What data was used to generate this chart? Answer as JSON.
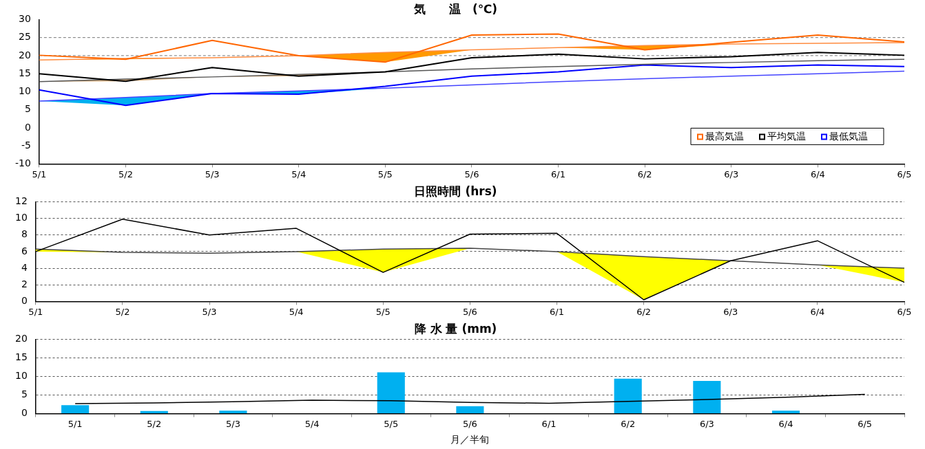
{
  "chart_data": [
    {
      "type": "line",
      "title": "気　　温　(℃)",
      "categories": [
        "5/1",
        "5/2",
        "5/3",
        "5/4",
        "5/5",
        "5/6",
        "6/1",
        "6/2",
        "6/3",
        "6/4",
        "6/5"
      ],
      "series": [
        {
          "name": "最高気温",
          "color": "#ff6600",
          "values": [
            20.1,
            19,
            24.2,
            20,
            18.2,
            25.7,
            26,
            21.6,
            23.7,
            25.7,
            23.8
          ]
        },
        {
          "color": "#ff8c40",
          "values": [
            18.8,
            19.2,
            19.4,
            20,
            20.9,
            21.6,
            22.2,
            22.8,
            23.2,
            23.4,
            23.6
          ],
          "lower": [
            18.8,
            19,
            19.4,
            20,
            18.2,
            21.6,
            22.2,
            21.6,
            23.2,
            23.4,
            23.6
          ],
          "upper": [
            18.8,
            19.2,
            19.4,
            20,
            20.9,
            21.6,
            22.2,
            22.8,
            23.2,
            23.4,
            23.6
          ]
        },
        {
          "name": "平均気温",
          "color": "#000000",
          "values": [
            15,
            12.9,
            16.7,
            14.3,
            15.5,
            19.4,
            20.4,
            19.1,
            19.7,
            20.9,
            20.1
          ]
        },
        {
          "color": "#555555",
          "values": [
            12.8,
            13.5,
            14.1,
            14.8,
            15.5,
            16.3,
            17,
            17.6,
            18.1,
            18.6,
            19
          ],
          "lower": [
            12.8,
            12.9,
            14.1,
            14.3,
            15.5,
            16.3,
            17,
            17.6,
            18.1,
            18.6,
            19
          ],
          "upper": [
            12.8,
            13.5,
            14.1,
            14.8,
            15.5,
            16.3,
            17,
            17.6,
            18.1,
            18.6,
            19
          ]
        },
        {
          "name": "最低気温",
          "color": "#0000ff",
          "values": [
            10.5,
            6.2,
            9.5,
            9.3,
            11.5,
            14.3,
            15.5,
            17.4,
            16.7,
            17.4,
            17
          ]
        },
        {
          "color": "#4444ff",
          "values": [
            7.4,
            8.4,
            9.5,
            10.2,
            11,
            11.9,
            12.8,
            13.6,
            14.3,
            15,
            15.7
          ],
          "lower": [
            7.4,
            6.2,
            9.5,
            9.3,
            11,
            11.9,
            12.8,
            13.6,
            14.3,
            15,
            15.7
          ],
          "upper": [
            7.4,
            8.4,
            9.5,
            10.2,
            11,
            11.9,
            12.8,
            13.6,
            14.3,
            15,
            15.7
          ]
        }
      ],
      "ylim": [
        -10,
        30
      ],
      "yticks": [
        -10,
        -5,
        0,
        5,
        10,
        15,
        20,
        25,
        30
      ],
      "ref_lines": [
        {
          "axis": "y",
          "value": 20,
          "line_style": "dashed"
        },
        {
          "axis": "y",
          "value": 25,
          "line_style": "dashed"
        }
      ],
      "legend": "bottom right"
    },
    {
      "type": "line",
      "title": "日照時間 (hrs)",
      "categories": [
        "5/1",
        "5/2",
        "5/3",
        "5/4",
        "5/5",
        "5/6",
        "6/1",
        "6/2",
        "6/3",
        "6/4",
        "6/5"
      ],
      "series": [
        {
          "color": "#000000",
          "values": [
            6,
            9.9,
            8,
            8.8,
            3.5,
            8.1,
            8.2,
            0.2,
            4.9,
            7.3,
            2.3
          ]
        },
        {
          "color": "#444444",
          "values": [
            6.3,
            5.9,
            5.8,
            6,
            6.3,
            6.4,
            6,
            5.4,
            4.9,
            4.4,
            4
          ],
          "lower": [
            6,
            5.9,
            5.8,
            6,
            3.5,
            6.4,
            6,
            0.2,
            4.9,
            4.4,
            2.3
          ],
          "upper": [
            6.3,
            5.9,
            5.8,
            6,
            6.3,
            6.4,
            6,
            5.4,
            4.9,
            4.4,
            4
          ]
        }
      ],
      "ylim": [
        0,
        12
      ],
      "yticks": [
        0,
        2,
        4,
        6,
        8,
        10,
        12
      ],
      "grid": "y"
    },
    {
      "type": "bar",
      "title": "降 水 量 (mm)",
      "xlabel": "月／半旬",
      "categories": [
        "5/1",
        "5/2",
        "5/3",
        "5/4",
        "5/5",
        "5/6",
        "6/1",
        "6/2",
        "6/3",
        "6/4",
        "6/5"
      ],
      "series": [
        {
          "color": "#00b0f0",
          "values": [
            2.3,
            0.7,
            0.8,
            0.1,
            11.1,
            2,
            0,
            9.4,
            8.8,
            0.8,
            0
          ]
        },
        {
          "type": "line",
          "color": "#000000",
          "values": [
            2.7,
            2.9,
            3.2,
            3.6,
            3.5,
            3,
            2.8,
            3.3,
            3.8,
            4.4,
            5.2
          ]
        }
      ],
      "ylim": [
        0,
        20
      ],
      "yticks": [
        0,
        5,
        10,
        15,
        20
      ],
      "grid": "y"
    }
  ]
}
